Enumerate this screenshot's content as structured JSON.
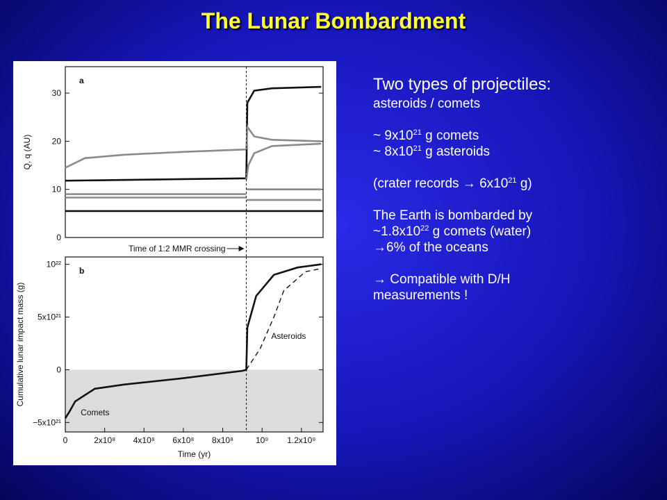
{
  "title": "The Lunar Bombardment",
  "chart_data": [
    {
      "type": "line",
      "panel_label": "a",
      "y_label": "Q, q (AU)",
      "annotation": "Time of 1:2 MMR crossing",
      "marker_x": 920000000,
      "xlim": [
        0,
        1310000000
      ],
      "ylim": [
        0,
        35.5
      ],
      "yticks": [
        0,
        10,
        20,
        30
      ],
      "series": [
        {
          "color": "#8a8a8a",
          "x": [
            0,
            100000000,
            300000000,
            600000000,
            920000000
          ],
          "values": [
            14.5,
            16.5,
            17.2,
            17.8,
            18.3
          ]
        },
        {
          "color": "#111111",
          "x": [
            0,
            920000000
          ],
          "values": [
            11.8,
            12.3
          ]
        },
        {
          "color": "#8a8a8a",
          "x": [
            0,
            920000000
          ],
          "values": [
            9,
            9
          ]
        },
        {
          "color": "#8a8a8a",
          "x": [
            0,
            920000000
          ],
          "values": [
            8.3,
            8.3
          ]
        },
        {
          "color": "#111111",
          "x": [
            0,
            1310000000
          ],
          "values": [
            5.5,
            5.5
          ]
        },
        {
          "color": "#111111",
          "x": [
            920000000,
            925000000,
            960000000,
            1050000000,
            1300000000
          ],
          "values": [
            12.3,
            28,
            30.5,
            31,
            31.3
          ]
        },
        {
          "color": "#8a8a8a",
          "x": [
            920000000,
            925000000,
            960000000,
            1050000000,
            1300000000
          ],
          "values": [
            18.3,
            23,
            21,
            20.3,
            20
          ]
        },
        {
          "color": "#8a8a8a",
          "x": [
            920000000,
            930000000,
            960000000,
            1050000000,
            1300000000
          ],
          "values": [
            12,
            15,
            17.5,
            19,
            19.5
          ]
        },
        {
          "color": "#8a8a8a",
          "x": [
            920000000,
            1300000000
          ],
          "values": [
            10,
            10
          ]
        },
        {
          "color": "#8a8a8a",
          "x": [
            920000000,
            1300000000
          ],
          "values": [
            7.8,
            7.8
          ]
        }
      ]
    },
    {
      "type": "line",
      "panel_label": "b",
      "y_label": "Cumulative lunar impact mass (g)",
      "x_label": "Time (yr)",
      "marker_x": 920000000,
      "xlim": [
        0,
        1310000000
      ],
      "ylim": [
        -5.9e+21,
        1.07e+22
      ],
      "yticks": [
        {
          "value": -5e+21,
          "label": "−5x10²¹"
        },
        0,
        {
          "value": 5e+21,
          "label": "5x10²¹"
        },
        {
          "value": 1e+22,
          "label": "10²²"
        }
      ],
      "xticks": [
        0,
        {
          "value": 200000000,
          "label": "2x10⁸"
        },
        {
          "value": 400000000,
          "label": "4x10⁸"
        },
        {
          "value": 600000000,
          "label": "6x10⁸"
        },
        {
          "value": 800000000,
          "label": "8x10⁸"
        },
        {
          "value": 1000000000,
          "label": "10⁹"
        },
        {
          "value": 1200000000,
          "label": "1.2x10⁹"
        }
      ],
      "series": [
        {
          "name": "Comets",
          "color": "#111111",
          "x": [
            0,
            20000000,
            50000000,
            100000000,
            150000000,
            300000000,
            600000000,
            900000000,
            920000000,
            925000000,
            970000000,
            1060000000,
            1180000000,
            1300000000
          ],
          "values": [
            -4.6e+21,
            -4e+21,
            -3e+21,
            -2.4e+21,
            -1.8e+21,
            -1.4e+21,
            -8e+20,
            -1e+20,
            0,
            4e+21,
            7e+21,
            9e+21,
            9.7e+21,
            1e+22
          ]
        },
        {
          "name": "Asteroids",
          "color": "#111111",
          "dash": true,
          "x": [
            920000000,
            990000000,
            1060000000,
            1110000000,
            1220000000,
            1300000000
          ],
          "values": [
            0,
            2e+21,
            5e+21,
            7.5e+21,
            9.3e+21,
            9.6e+21
          ]
        }
      ]
    }
  ],
  "blocks": [
    [
      [
        "Two types of projectiles:"
      ],
      [
        "asteroids / comets"
      ]
    ],
    [
      [
        "~ 9x10",
        {
          "sup": "21"
        },
        " g comets"
      ],
      [
        "~ 8x10",
        {
          "sup": "21"
        },
        " g asteroids"
      ]
    ],
    [
      [
        "(crater records → 6x10",
        {
          "sup": "21"
        },
        " g)"
      ]
    ],
    [
      [
        "The Earth is bombarded by"
      ],
      [
        "~1.8x10",
        {
          "sup": "22"
        },
        " g comets (water)"
      ],
      [
        "→6% of the oceans"
      ]
    ],
    [
      [
        "→ Compatible with D/H"
      ],
      [
        "measurements !"
      ]
    ]
  ]
}
